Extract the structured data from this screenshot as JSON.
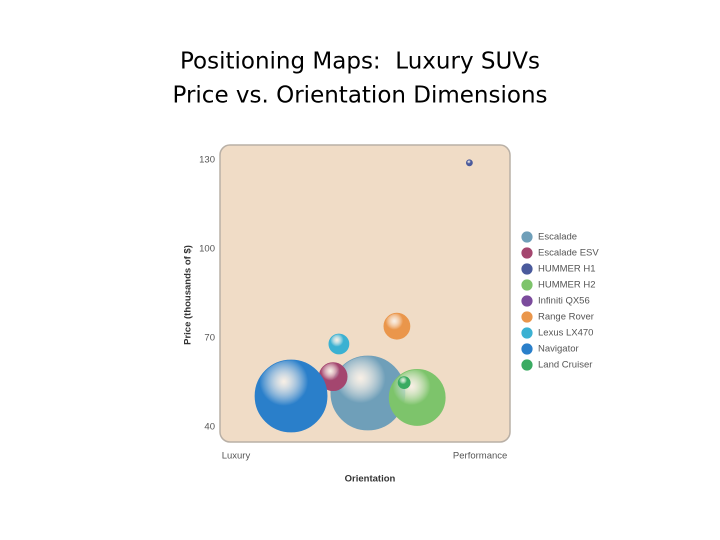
{
  "chart_data": {
    "type": "scatter",
    "title": "Positioning Maps:  Luxury SUVs",
    "subtitle": "Price vs. Orientation Dimensions",
    "x_label": "Orientation",
    "y_label": "Price (thousands of $)",
    "xlim": [
      0,
      10
    ],
    "xticks": [
      {
        "value": 0.55,
        "label": "Luxury"
      },
      {
        "value": 8.97,
        "label": "Performance"
      }
    ],
    "ylim": [
      35,
      135
    ],
    "yticks": [
      130,
      100,
      70,
      40
    ],
    "series": [
      {
        "name": "Escalade",
        "color": "#6f9fb9",
        "x": [
          5.1
        ],
        "values": [
          51.5
        ],
        "sizes": [
          37
        ]
      },
      {
        "name": "Escalade ESV",
        "color": "#a4466f",
        "x": [
          3.9
        ],
        "values": [
          57
        ],
        "sizes": [
          14
        ]
      },
      {
        "name": "HUMMER H1",
        "color": "#4a5a9c",
        "x": [
          8.6
        ],
        "values": [
          129
        ],
        "sizes": [
          3
        ]
      },
      {
        "name": "HUMMER H2",
        "color": "#7dc46b",
        "x": [
          6.8
        ],
        "values": [
          50
        ],
        "sizes": [
          28
        ]
      },
      {
        "name": "Infiniti QX56",
        "color": "#7b4b9c",
        "x": [
          3.1
        ],
        "values": [
          47
        ],
        "sizes": [
          13
        ]
      },
      {
        "name": "Range Rover",
        "color": "#ea964b",
        "x": [
          6.1
        ],
        "values": [
          74
        ],
        "sizes": [
          13
        ]
      },
      {
        "name": "Lexus LX470",
        "color": "#3bb1d2",
        "x": [
          4.1
        ],
        "values": [
          68
        ],
        "sizes": [
          10
        ]
      },
      {
        "name": "Navigator",
        "color": "#2a7fca",
        "x": [
          2.45
        ],
        "values": [
          50.5
        ],
        "sizes": [
          36
        ]
      },
      {
        "name": "Land Cruiser",
        "color": "#3aab62",
        "x": [
          6.35
        ],
        "values": [
          55
        ],
        "sizes": [
          6
        ]
      }
    ]
  }
}
